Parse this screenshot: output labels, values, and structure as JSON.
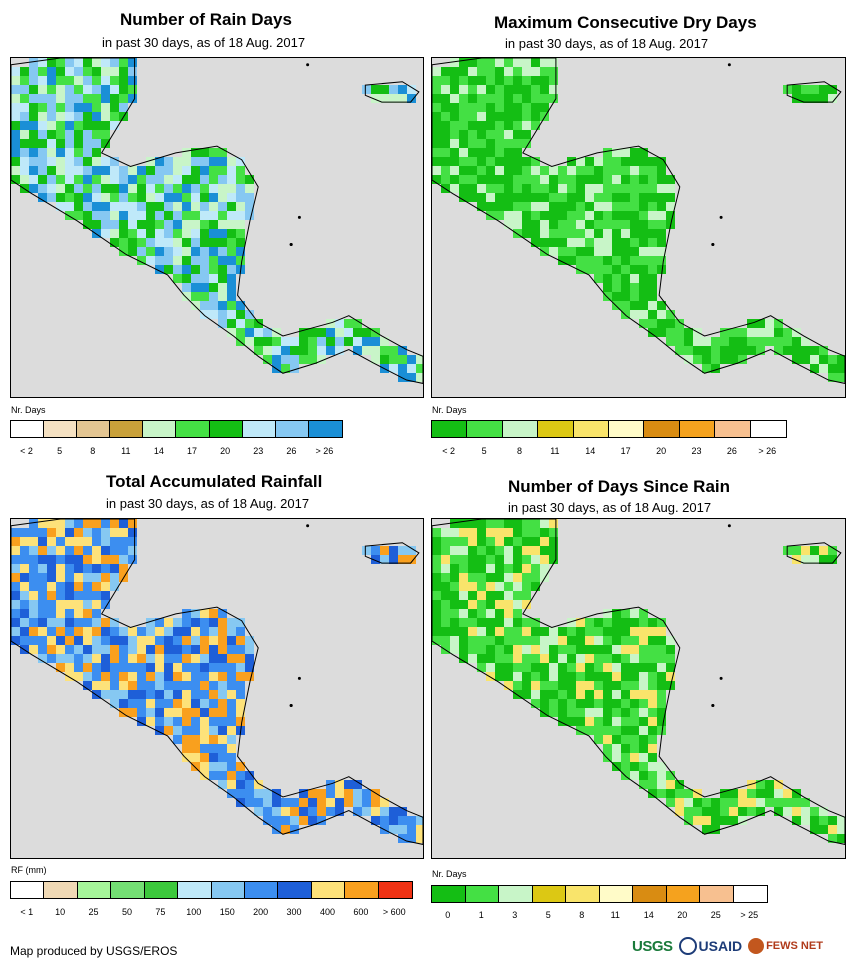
{
  "panels": [
    {
      "title": "Number of Rain Days",
      "subtitle": "in past 30 days, as of 18 Aug. 2017",
      "legend_unit": "Nr. Days",
      "legend_ticks": [
        "< 2",
        "5",
        "8",
        "11",
        "14",
        "17",
        "20",
        "23",
        "26",
        "> 26"
      ],
      "legend_colors": [
        "#ffffff",
        "#f5e1c2",
        "#e3c592",
        "#c9a13a",
        "#c8f5c8",
        "#44e044",
        "#14be14",
        "#bfe9f9",
        "#86c8f2",
        "#1a8fd6"
      ],
      "palette": [
        "#14be14",
        "#44e044",
        "#86c8f2",
        "#bfe9f9",
        "#1a8fd6",
        "#c8f5c8"
      ]
    },
    {
      "title": "Maximum Consecutive Dry Days",
      "subtitle": "in past 30 days, as of 18 Aug. 2017",
      "legend_unit": "Nr. Days",
      "legend_ticks": [
        "< 2",
        "5",
        "8",
        "11",
        "14",
        "17",
        "20",
        "23",
        "26",
        "> 26"
      ],
      "legend_colors": [
        "#14be14",
        "#44e044",
        "#c8f5c8",
        "#dcc814",
        "#f9e46b",
        "#fffbc8",
        "#d98c12",
        "#f5a21e",
        "#f7c090",
        "#ffffff"
      ],
      "palette": [
        "#14be14",
        "#14be14",
        "#44e044",
        "#14be14",
        "#c8f5c8",
        "#44e044"
      ]
    },
    {
      "title": "Total Accumulated Rainfall",
      "subtitle": "in past 30 days, as of 18 Aug. 2017",
      "legend_unit": "RF (mm)",
      "legend_ticks": [
        "< 1",
        "10",
        "25",
        "50",
        "75",
        "100",
        "150",
        "200",
        "300",
        "400",
        "600",
        "> 600"
      ],
      "legend_colors": [
        "#ffffff",
        "#f0d9b5",
        "#a6f59a",
        "#74df74",
        "#3cc83c",
        "#bfe9f9",
        "#86c8f2",
        "#3c8ef0",
        "#1e5fd8",
        "#fde27a",
        "#f9a01e",
        "#f03214"
      ],
      "palette": [
        "#3c8ef0",
        "#1e5fd8",
        "#86c8f2",
        "#fde27a",
        "#f9a01e",
        "#3c8ef0"
      ]
    },
    {
      "title": "Number of Days Since Rain",
      "subtitle": "in past 30 days, as of 18 Aug. 2017",
      "legend_unit": "Nr. Days",
      "legend_ticks": [
        "0",
        "1",
        "3",
        "5",
        "8",
        "11",
        "14",
        "20",
        "25",
        "> 25"
      ],
      "legend_colors": [
        "#14be14",
        "#44e044",
        "#c8f5c8",
        "#dcc814",
        "#f9e46b",
        "#fffbc8",
        "#d98c12",
        "#f5a21e",
        "#f7c090",
        "#ffffff"
      ],
      "palette": [
        "#14be14",
        "#44e044",
        "#44e044",
        "#c8f5c8",
        "#14be14",
        "#f9e46b"
      ]
    }
  ],
  "footer": {
    "credit": "Map produced by USGS/EROS",
    "logos": [
      "USGS",
      "USAID",
      "FEWS NET"
    ]
  }
}
